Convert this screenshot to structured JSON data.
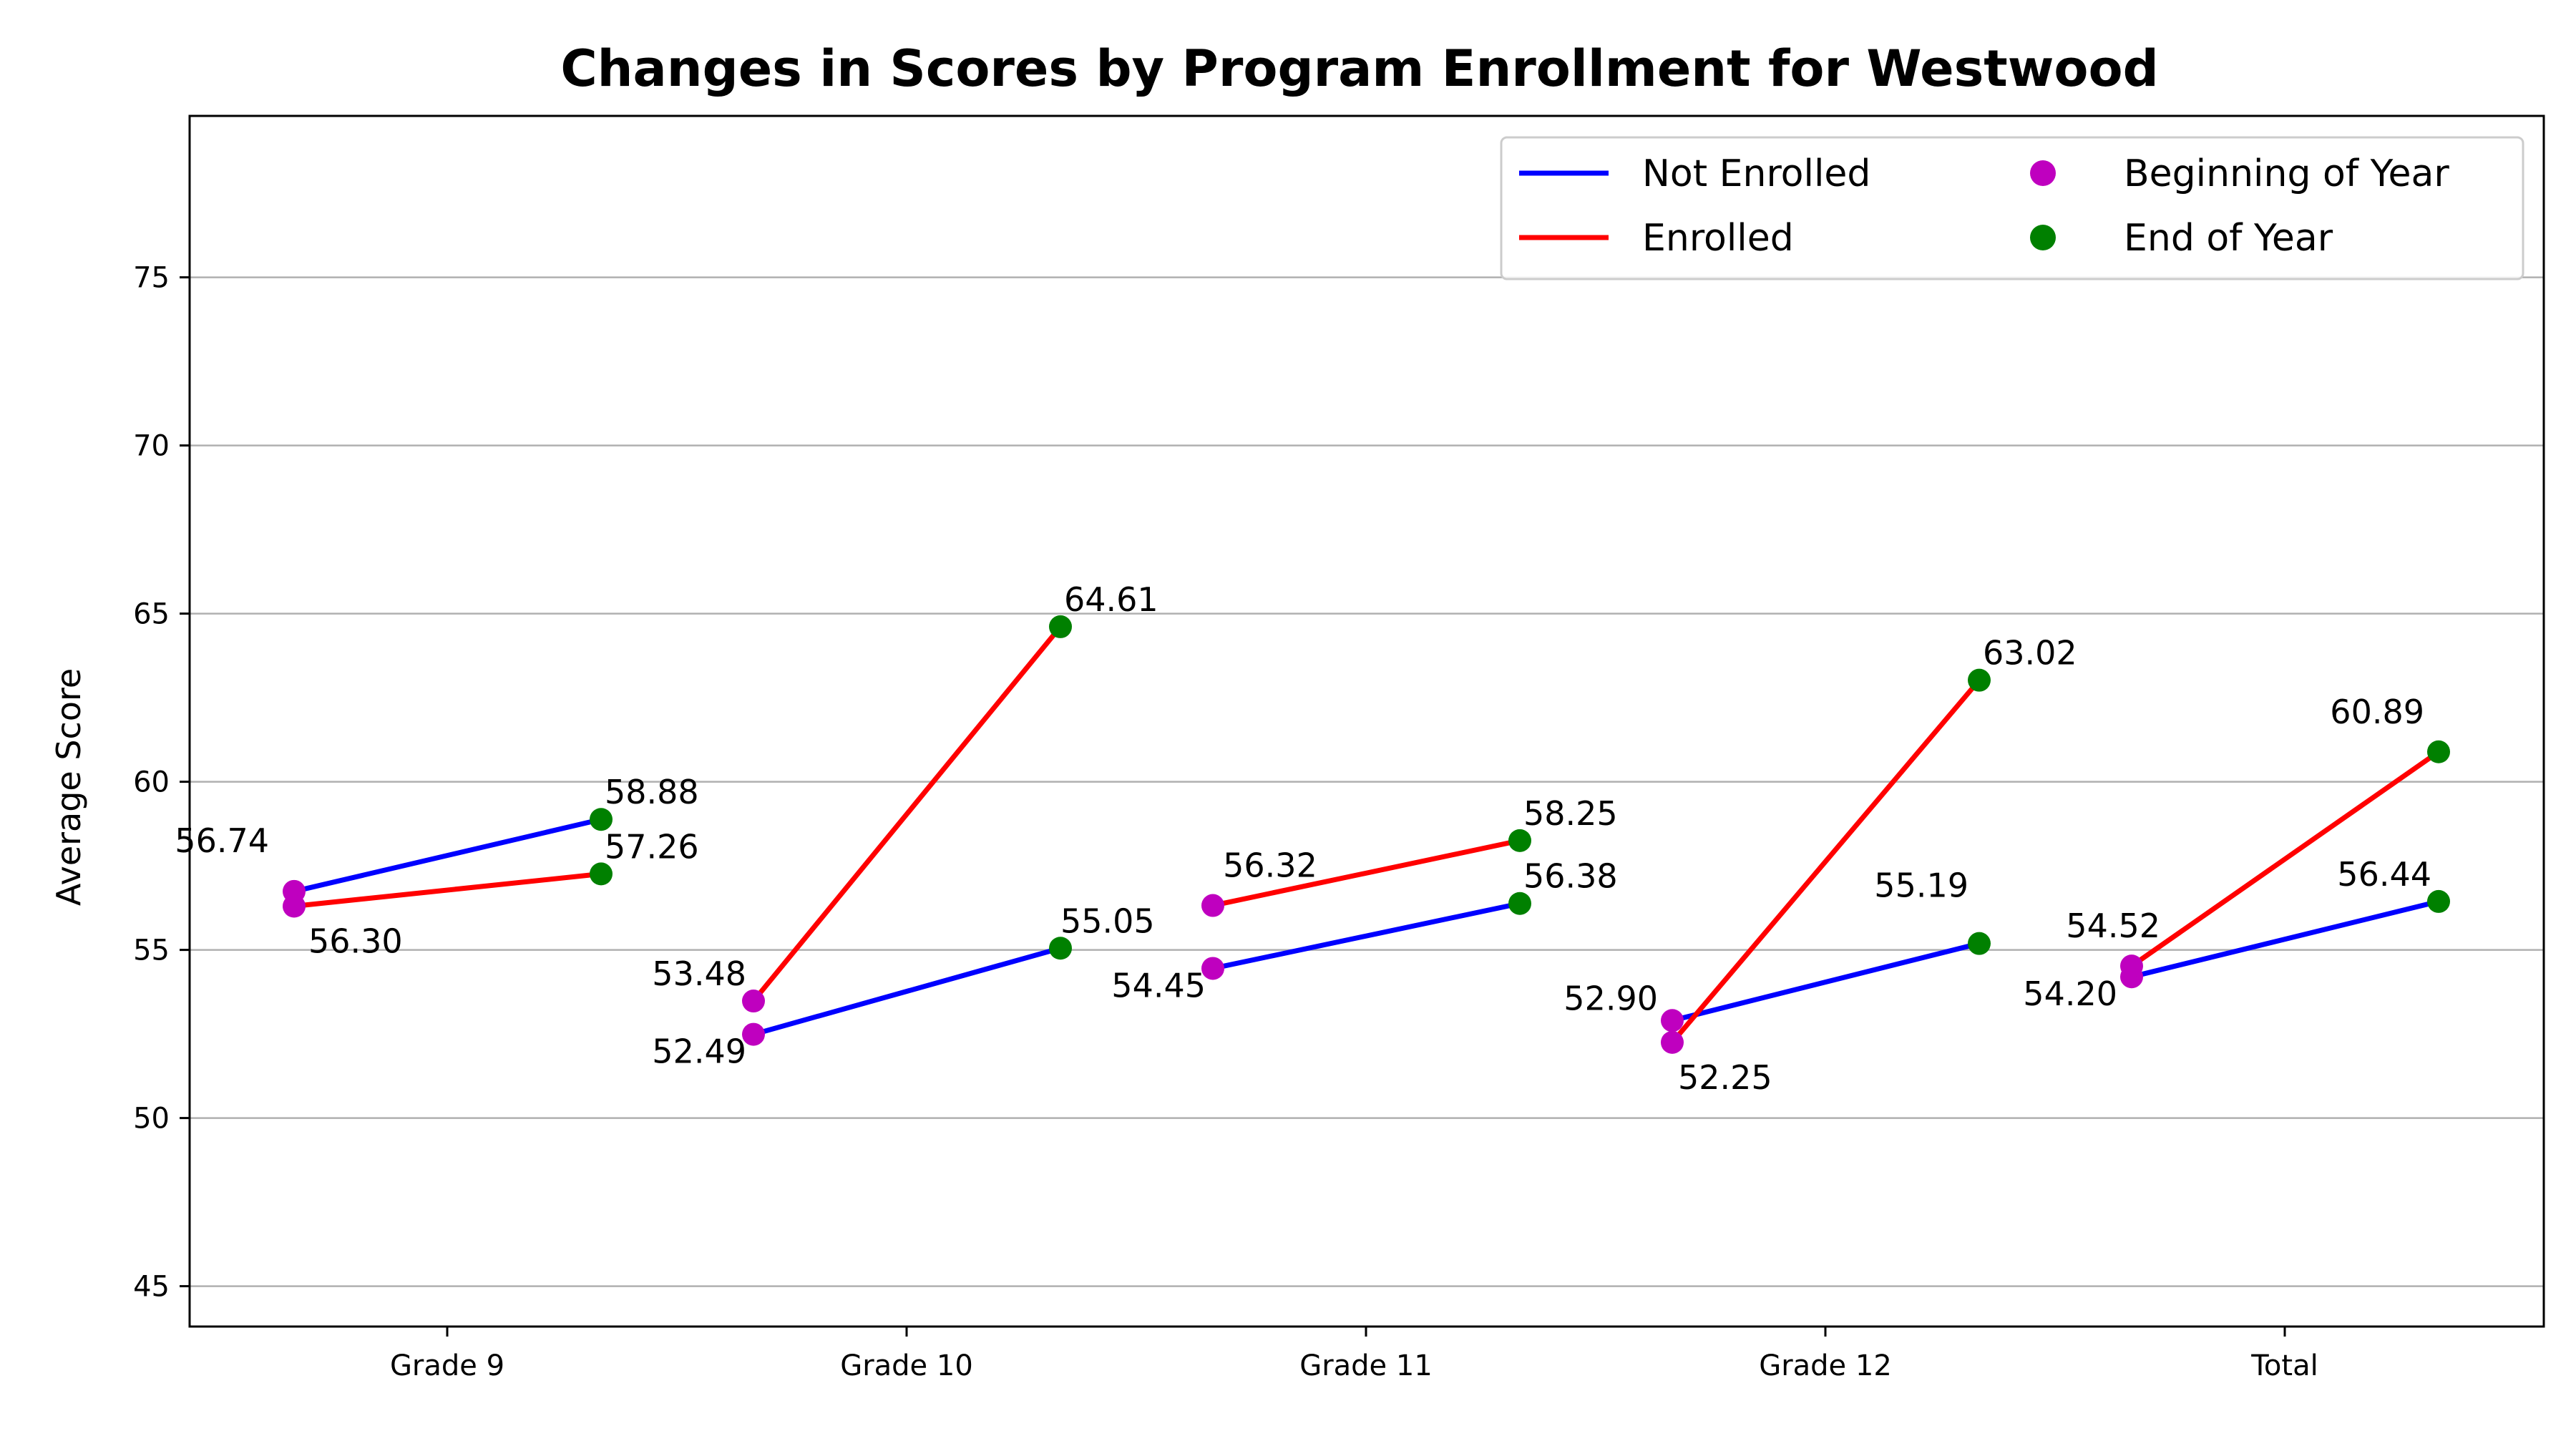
{
  "chart_data": {
    "type": "line",
    "title": "Changes in Scores by Program Enrollment for Westwood",
    "xlabel": "",
    "ylabel": "Average Score",
    "ylim": [
      43.8,
      79.8
    ],
    "yticks": [
      45,
      50,
      55,
      60,
      65,
      70,
      75
    ],
    "grid": "horizontal",
    "legend_placement": "top-right",
    "categories": [
      "Grade 9",
      "Grade 10",
      "Grade 11",
      "Grade 12",
      "Total"
    ],
    "series": [
      {
        "name": "Not Enrolled",
        "color": "#0000ff",
        "beginning": [
          56.74,
          52.49,
          54.45,
          52.9,
          54.2
        ],
        "end": [
          58.88,
          55.05,
          56.38,
          55.19,
          56.44
        ]
      },
      {
        "name": "Enrolled",
        "color": "#ff0000",
        "beginning": [
          56.3,
          53.48,
          56.32,
          52.25,
          54.52
        ],
        "end": [
          57.26,
          64.61,
          58.25,
          63.02,
          60.89
        ]
      }
    ],
    "markers": [
      {
        "name": "Beginning of Year",
        "color": "#bf00bf"
      },
      {
        "name": "End of Year",
        "color": "#008000"
      }
    ],
    "data_labels": {
      "not_enrolled_beginning": [
        "56.74",
        "52.49",
        "54.45",
        "52.90",
        "54.20"
      ],
      "not_enrolled_end": [
        "58.88",
        "55.05",
        "56.38",
        "55.19",
        "56.44"
      ],
      "enrolled_beginning": [
        "56.30",
        "53.48",
        "56.32",
        "52.25",
        "54.52"
      ],
      "enrolled_end": [
        "57.26",
        "64.61",
        "58.25",
        "63.02",
        "60.89"
      ]
    }
  }
}
